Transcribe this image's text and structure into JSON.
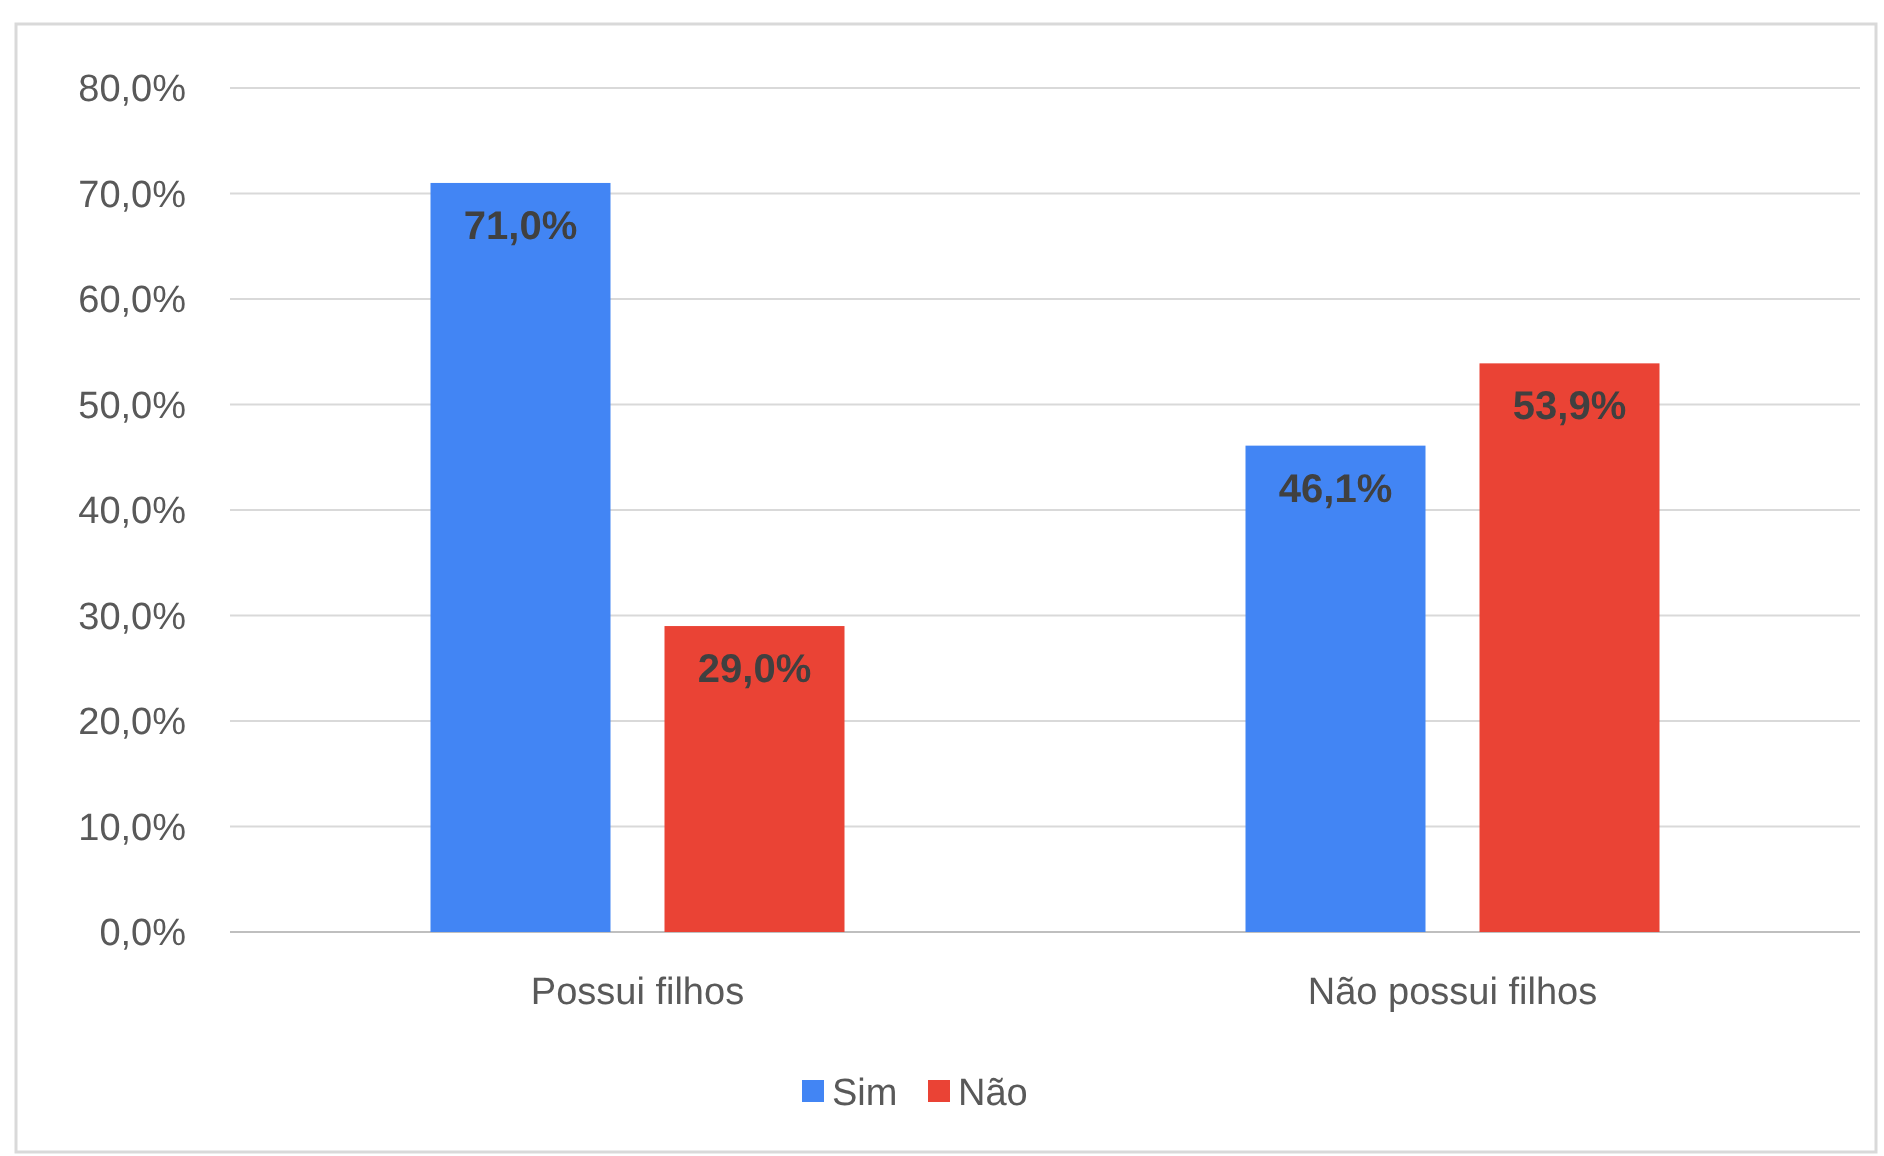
{
  "chart_data": {
    "type": "bar",
    "categories": [
      "Possui filhos",
      "Não possui filhos"
    ],
    "series": [
      {
        "name": "Sim",
        "color": "#4285f4",
        "values": [
          71.0,
          46.1
        ],
        "value_labels": [
          "71,0%",
          "46,1%"
        ]
      },
      {
        "name": "Não",
        "color": "#ea4335",
        "values": [
          29.0,
          53.9
        ],
        "value_labels": [
          "29,0%",
          "53,9%"
        ]
      }
    ],
    "ylim": [
      0,
      80
    ],
    "yticks": [
      {
        "value": 0,
        "label": "0,0%"
      },
      {
        "value": 10,
        "label": "10,0%"
      },
      {
        "value": 20,
        "label": "20,0%"
      },
      {
        "value": 30,
        "label": "30,0%"
      },
      {
        "value": 40,
        "label": "40,0%"
      },
      {
        "value": 50,
        "label": "50,0%"
      },
      {
        "value": 60,
        "label": "60,0%"
      },
      {
        "value": 70,
        "label": "70,0%"
      },
      {
        "value": 80,
        "label": "80,0%"
      }
    ],
    "grid": "y",
    "legend": "bottom"
  }
}
